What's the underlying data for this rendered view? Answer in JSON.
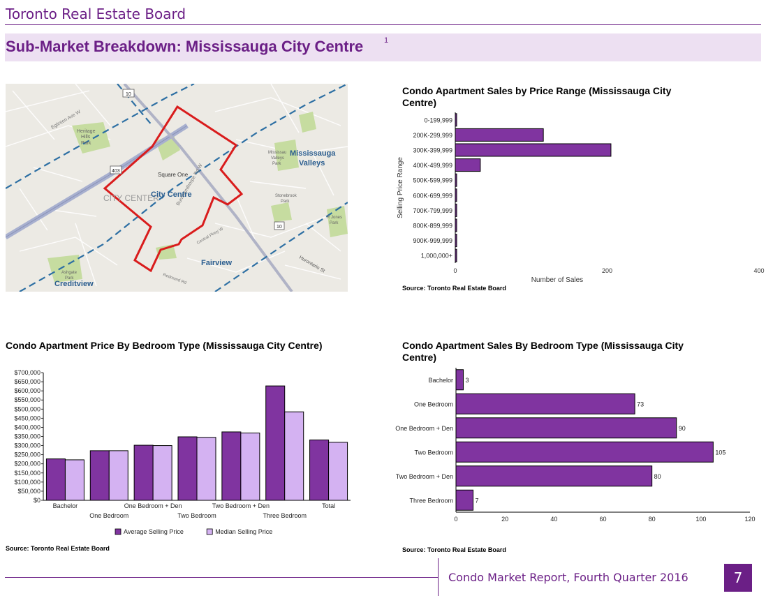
{
  "header": {
    "org_name": "Toronto Real Estate Board",
    "page_title": "Sub-Market Breakdown: Mississauga City Centre",
    "footnote_mark": "1"
  },
  "map": {
    "labels": [
      "Mississauga Valleys",
      "City Centre",
      "Fairview",
      "Creditview",
      "Square One",
      "CITY CENTER",
      "Heritage Hills Park",
      "Ashgate Park",
      "Stonebrook Park",
      "R Jones Park",
      "Mississau Valleys Park",
      "McKee Park"
    ],
    "road_labels": [
      "Eglinton Ave W",
      "Burnhamthorpe Rd W",
      "Hurontario St",
      "Central Pkwy W",
      "Elm Dr",
      "Redmond Rd",
      "Rathburn Rd W",
      "Hyacinthe Blvd",
      "Confederation Pkwy",
      "Kamp Park"
    ],
    "route_shields": [
      "10",
      "403",
      "10"
    ],
    "colors": {
      "boundary": "#d91c1c",
      "park": "#c6dca0",
      "base": "#eceae4"
    }
  },
  "chart_price_range": {
    "title": "Condo Apartment Sales by Price Range (Mississauga City Centre)",
    "source": "Source: Toronto Real Estate Board",
    "chart_data": {
      "type": "bar",
      "orientation": "horizontal",
      "categories": [
        "0-199,999",
        "200K-299,999",
        "300K-399,999",
        "400K-499,999",
        "500K-599,999",
        "600K-699,999",
        "700K-799,999",
        "800K-899,999",
        "900K-999,999",
        "1,000,000+"
      ],
      "values": [
        0,
        116,
        205,
        33,
        1,
        1,
        0,
        0,
        0,
        0
      ],
      "xlabel": "Number of Sales",
      "ylabel": "Selling Price Range",
      "xlim": [
        0,
        400
      ],
      "xticks": [
        "0",
        "200",
        "400"
      ],
      "color": "#8034a0"
    }
  },
  "chart_price_bedroom": {
    "title": "Condo Apartment Price By Bedroom Type (Mississauga City Centre)",
    "source": "Source: Toronto Real Estate Board",
    "chart_data": {
      "type": "bar",
      "categories": [
        "Bachelor",
        "One Bedroom",
        "One Bedroom + Den",
        "Two Bedroom",
        "Two Bedroom + Den",
        "Three Bedroom",
        "Total"
      ],
      "series": [
        {
          "name": "Average Selling Price",
          "values": [
            227000,
            272000,
            302000,
            348000,
            375000,
            627000,
            331000
          ],
          "color": "#8034a0"
        },
        {
          "name": "Median Selling Price",
          "values": [
            222000,
            272000,
            300000,
            345000,
            369000,
            485000,
            318000
          ],
          "color": "#d4b2f2"
        }
      ],
      "ylim": [
        0,
        700000
      ],
      "yticks": [
        "$0",
        "$50,000",
        "$100,000",
        "$150,000",
        "$200,000",
        "$250,000",
        "$300,000",
        "$350,000",
        "$400,000",
        "$450,000",
        "$500,000",
        "$550,000",
        "$600,000",
        "$650,000",
        "$700,000"
      ],
      "legend": "bottom"
    }
  },
  "chart_sales_bedroom": {
    "title": "Condo Apartment Sales By Bedroom Type (Mississauga City Centre)",
    "source": "Source: Toronto Real Estate Board",
    "chart_data": {
      "type": "bar",
      "orientation": "horizontal",
      "categories": [
        "Bachelor",
        "One Bedroom",
        "One Bedroom + Den",
        "Two Bedroom",
        "Two Bedroom + Den",
        "Three Bedroom"
      ],
      "values": [
        3,
        73,
        90,
        105,
        80,
        7
      ],
      "data_labels": [
        "3",
        "73",
        "90",
        "105",
        "80",
        "7"
      ],
      "xlim": [
        0,
        120
      ],
      "xticks": [
        "0",
        "20",
        "40",
        "60",
        "80",
        "100",
        "120"
      ],
      "color": "#8034a0"
    }
  },
  "footer": {
    "report": "Condo Market Report, Fourth Quarter 2016",
    "page_number": "7"
  }
}
